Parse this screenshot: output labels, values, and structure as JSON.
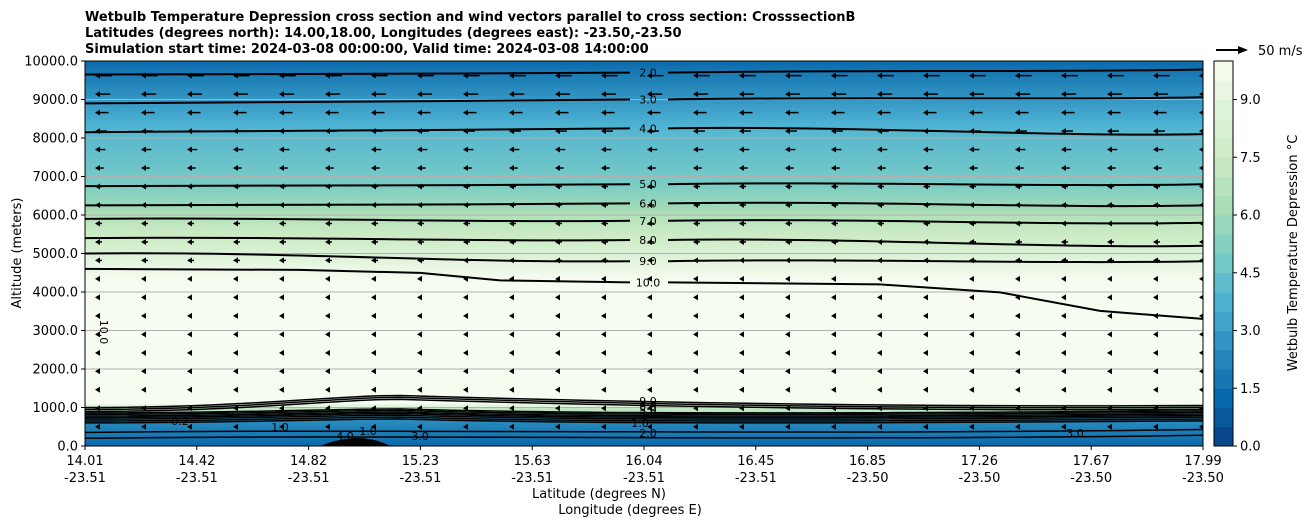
{
  "chart_data": {
    "type": "contour",
    "title_lines": [
      "Wetbulb Temperature Depression cross section and wind vectors parallel to cross section: CrosssectionB",
      "Latitudes (degrees north): 14.00,18.00, Longitudes (degrees east): -23.50,-23.50",
      "Simulation start time: 2024-03-08 00:00:00, Valid time: 2024-03-08 14:00:00"
    ],
    "xlabel": "Latitude (degrees N)",
    "xlabel2": "Longitude (degrees E)",
    "ylabel": "Altitude (meters)",
    "colorbar_label": "Wetbulb Temperature Depression °C",
    "quiver_key_label": "50 m/s",
    "x_ticks": [
      {
        "lat": "14.01",
        "lon": "-23.51"
      },
      {
        "lat": "14.42",
        "lon": "-23.51"
      },
      {
        "lat": "14.82",
        "lon": "-23.51"
      },
      {
        "lat": "15.23",
        "lon": "-23.51"
      },
      {
        "lat": "15.63",
        "lon": "-23.51"
      },
      {
        "lat": "16.04",
        "lon": "-23.51"
      },
      {
        "lat": "16.45",
        "lon": "-23.51"
      },
      {
        "lat": "16.85",
        "lon": "-23.50"
      },
      {
        "lat": "17.26",
        "lon": "-23.50"
      },
      {
        "lat": "17.67",
        "lon": "-23.50"
      },
      {
        "lat": "17.99",
        "lon": "-23.50"
      }
    ],
    "y_ticks": [
      "0.0",
      "1000.0",
      "2000.0",
      "3000.0",
      "4000.0",
      "5000.0",
      "6000.0",
      "7000.0",
      "8000.0",
      "9000.0",
      "10000.0"
    ],
    "ylim": [
      0,
      10000
    ],
    "colorbar_ticks": [
      "0.0",
      "1.5",
      "3.0",
      "4.5",
      "6.0",
      "7.5",
      "9.0"
    ],
    "colorbar_range": [
      0,
      10
    ],
    "colormap": "GnBu_r",
    "grid_horizontal": true,
    "contour_levels_upper": [
      {
        "value": 2.0,
        "label": "2.0",
        "alt_left": 9650,
        "alt_mid": 9700,
        "alt_right": 9780
      },
      {
        "value": 3.0,
        "label": "3.0",
        "alt_left": 8900,
        "alt_mid": 9000,
        "alt_right": 9060
      },
      {
        "value": 4.0,
        "label": "4.0",
        "alt_left": 8150,
        "alt_mid": 8250,
        "alt_right": 8100
      },
      {
        "value": 5.0,
        "label": "5.0",
        "alt_left": 6750,
        "alt_mid": 6800,
        "alt_right": 6800
      },
      {
        "value": 6.0,
        "label": "6.0",
        "alt_left": 6250,
        "alt_mid": 6300,
        "alt_right": 6250
      },
      {
        "value": 7.0,
        "label": "7.0",
        "alt_left": 5900,
        "alt_mid": 5850,
        "alt_right": 5800
      },
      {
        "value": 8.0,
        "label": "8.0",
        "alt_left": 5400,
        "alt_mid": 5350,
        "alt_right": 5200
      },
      {
        "value": 9.0,
        "label": "9.0",
        "alt_left": 5000,
        "alt_mid": 4800,
        "alt_right": 4800
      },
      {
        "value": 10.0,
        "label": "10.0",
        "alt_left": 4600,
        "alt_mid": 4250,
        "alt_right": 3300
      }
    ],
    "contour_levels_lower_labels": [
      "9.0",
      "8.0",
      "5.0",
      "3.0",
      "1.0",
      "2.0",
      "10.0",
      "0.2",
      "3.0",
      "1.0",
      "1.0",
      "4.0",
      "3.0"
    ]
  }
}
